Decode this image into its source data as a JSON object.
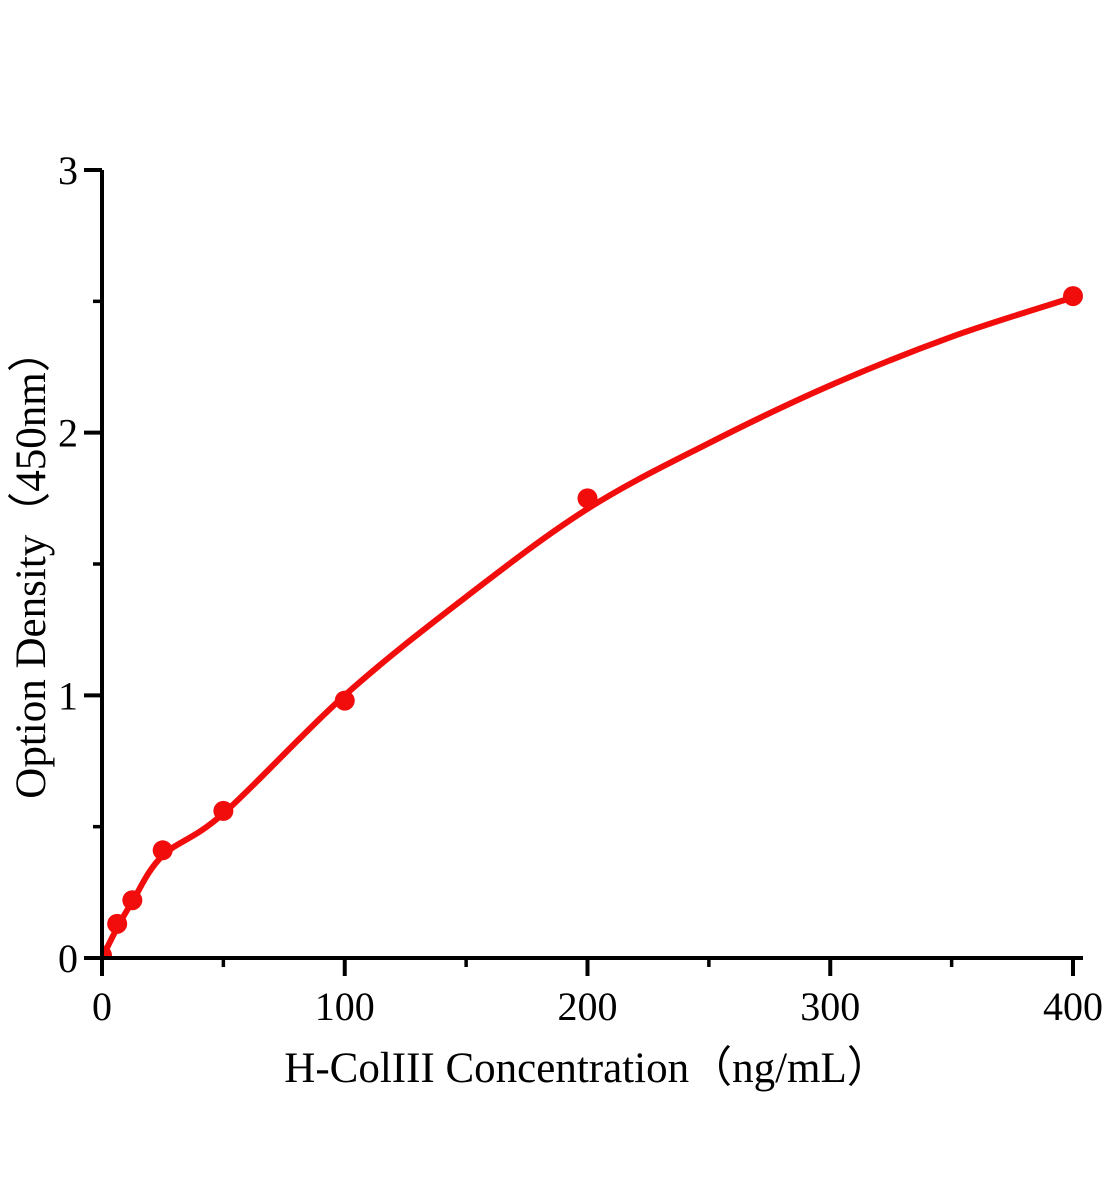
{
  "figure": {
    "background_color": "#ffffff",
    "axis_color": "#000000",
    "accent_red": "#f20d0d"
  },
  "chart_data": {
    "type": "scatter",
    "title": "",
    "xlabel": "H-ColIII Concentration（ng/mL）",
    "ylabel": "Option Density（450nm）",
    "x_range": [
      0,
      400
    ],
    "y_range": [
      0,
      3
    ],
    "x_major_ticks": [
      0,
      100,
      200,
      300,
      400
    ],
    "x_tick_labels": [
      "0",
      "100",
      "200",
      "300",
      "400"
    ],
    "x_minor_ticks": [
      50,
      150,
      250,
      350
    ],
    "y_major_ticks": [
      0,
      1,
      2,
      3
    ],
    "y_tick_labels": [
      "0",
      "1",
      "2",
      "3"
    ],
    "y_minor_ticks": [
      0.5,
      1.5,
      2.5
    ],
    "grid": false,
    "legend": false,
    "series": [
      {
        "name": "standard-points",
        "type": "scatter",
        "color": "#f20d0d",
        "marker": "circle",
        "marker_radius": 10,
        "points": [
          [
            0,
            0.01
          ],
          [
            6.25,
            0.13
          ],
          [
            12.5,
            0.22
          ],
          [
            25,
            0.41
          ],
          [
            50,
            0.56
          ],
          [
            100,
            0.98
          ],
          [
            200,
            1.75
          ],
          [
            400,
            2.52
          ]
        ]
      },
      {
        "name": "fitted-curve",
        "type": "line",
        "color": "#f20d0d",
        "stroke_width": 6,
        "points": [
          [
            0,
            0.0
          ],
          [
            6.25,
            0.115
          ],
          [
            12.5,
            0.215
          ],
          [
            25,
            0.39
          ],
          [
            50,
            0.55
          ],
          [
            100,
            1.0
          ],
          [
            150,
            1.375
          ],
          [
            200,
            1.71
          ],
          [
            250,
            1.96
          ],
          [
            300,
            2.18
          ],
          [
            350,
            2.365
          ],
          [
            400,
            2.515
          ]
        ]
      }
    ]
  }
}
